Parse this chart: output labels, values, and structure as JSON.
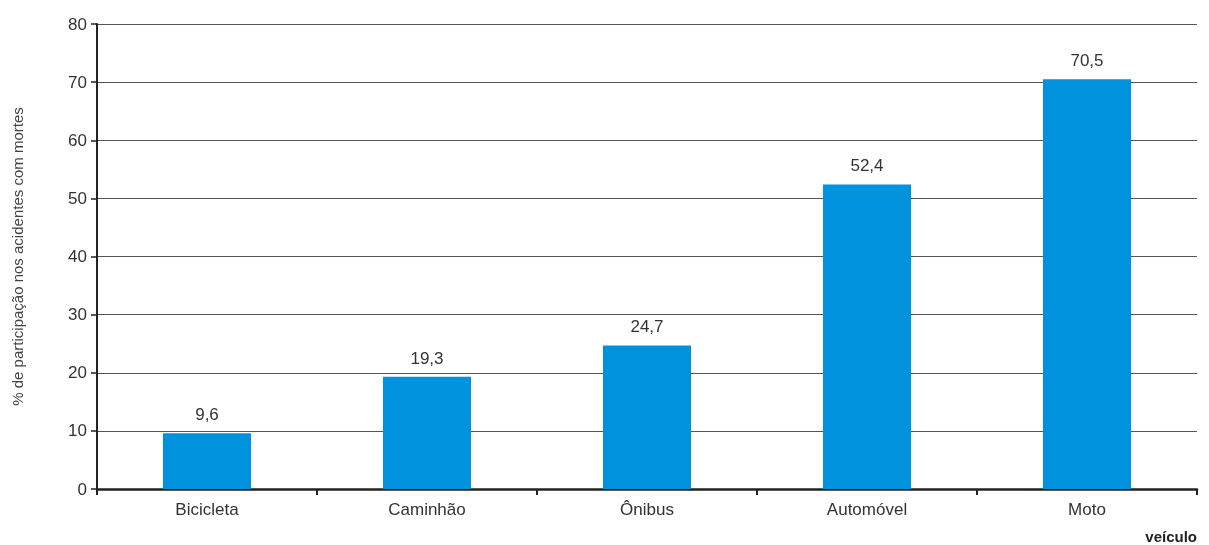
{
  "chart_data": {
    "type": "bar",
    "ylabel": "% de participação nos acidentes com mortes",
    "xlabel": "veículo",
    "categories": [
      "Bicicleta",
      "Caminhão",
      "Ônibus",
      "Automóvel",
      "Moto"
    ],
    "values": [
      9.6,
      19.3,
      24.7,
      52.4,
      70.5
    ],
    "value_labels": [
      "9,6",
      "19,3",
      "24,7",
      "52,4",
      "70,5"
    ],
    "color": "#0092dd",
    "ylim": [
      0,
      80
    ],
    "yticks": [
      0,
      10,
      20,
      30,
      40,
      50,
      60,
      70,
      80
    ],
    "grid": "y"
  }
}
